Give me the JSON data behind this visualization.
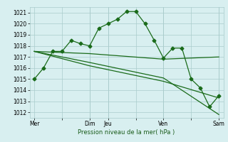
{
  "background_color": "#d8eff0",
  "grid_color": "#aacccc",
  "line_color": "#1a6b1a",
  "marker_color": "#1a6b1a",
  "xlabel": "Pression niveau de la mer( hPa )",
  "ylim": [
    1011.5,
    1021.5
  ],
  "yticks": [
    1012,
    1013,
    1014,
    1015,
    1016,
    1017,
    1018,
    1019,
    1020,
    1021
  ],
  "xtick_labels": [
    "Mer",
    "",
    "Dim",
    "Jeu",
    "",
    "Ven",
    "",
    "Sam"
  ],
  "xtick_positions": [
    0,
    3,
    6,
    8,
    11,
    14,
    17,
    20
  ],
  "vlines": [
    6,
    8,
    14,
    20
  ],
  "series1": {
    "x": [
      0,
      1,
      2,
      3,
      4,
      5,
      6,
      7,
      8,
      9,
      10,
      11,
      12,
      13,
      14,
      15,
      16,
      17,
      18,
      19,
      20
    ],
    "y": [
      1015.0,
      1016.0,
      1017.5,
      1017.5,
      1018.5,
      1018.2,
      1018.0,
      1019.6,
      1020.0,
      1020.4,
      1021.1,
      1021.1,
      1020.0,
      1018.5,
      1016.9,
      1017.8,
      1017.8,
      1015.0,
      1014.2,
      1012.5,
      1013.5
    ],
    "marker": "D",
    "markersize": 2.5,
    "linewidth": 0.9
  },
  "series2": {
    "x": [
      0,
      6,
      14,
      20
    ],
    "y": [
      1017.5,
      1017.3,
      1016.8,
      1017.0
    ],
    "linewidth": 0.9
  },
  "series3": {
    "x": [
      0,
      6,
      14,
      20
    ],
    "y": [
      1017.5,
      1016.5,
      1015.1,
      1011.8
    ],
    "linewidth": 0.9
  },
  "series4": {
    "x": [
      0,
      6,
      14,
      20
    ],
    "y": [
      1017.5,
      1016.2,
      1014.8,
      1013.3
    ],
    "linewidth": 0.9
  }
}
